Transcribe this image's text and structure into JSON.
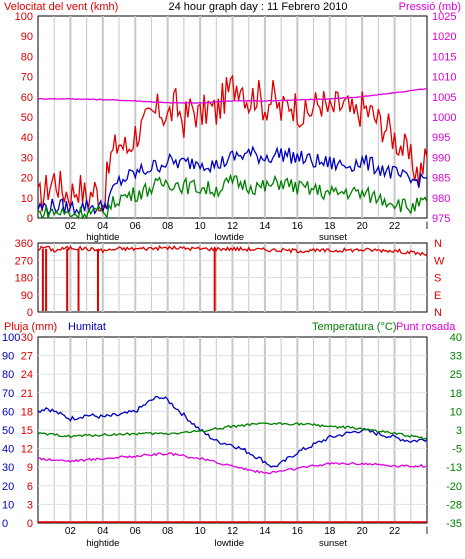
{
  "header": {
    "wind_title": "Velocitat del vent (kmh)",
    "graph_title": "24 hour graph day : 11 Febrero 2010",
    "pressure_title": "Pressió (mb)",
    "rain_title": "Pluja (mm)",
    "humidity_title": "Humitat",
    "temp_title": "Temperatura (°C)",
    "dew_title": "Punt rosada"
  },
  "colors": {
    "wind": "#e00000",
    "pressure": "#e000e0",
    "avg_wind": "#0000c0",
    "low_wind": "#008000",
    "humidity": "#0000c0",
    "temperature": "#008000",
    "dewpoint": "#e000e0",
    "rain": "#e00000",
    "grid_v": "#c8c8c8",
    "grid_h": "#e0e0e0"
  },
  "chart_data": [
    {
      "type": "line",
      "x_ticks": [
        "02",
        "04",
        "06",
        "08",
        "10",
        "12",
        "14",
        "16",
        "18",
        "20",
        "22",
        "l"
      ],
      "x_annotations": [
        {
          "x": 4.0,
          "label": "hightide"
        },
        {
          "x": 11.8,
          "label": "lowtide"
        },
        {
          "x": 18.2,
          "label": "sunset"
        }
      ],
      "xlim": [
        0,
        24
      ],
      "y_left_ticks": [
        "0",
        "10",
        "20",
        "30",
        "40",
        "50",
        "60",
        "70",
        "80",
        "90",
        "100"
      ],
      "ylim_left": [
        0,
        100
      ],
      "y_right_ticks": [
        "975",
        "980",
        "985",
        "990",
        "995",
        "1000",
        "1005",
        "1010",
        "1015",
        "1020",
        "1025"
      ],
      "ylim_right": [
        975,
        1025
      ],
      "series": [
        {
          "axis": "left",
          "color_key": "wind",
          "points": [
            [
              0,
              8
            ],
            [
              0.5,
              14
            ],
            [
              1,
              20
            ],
            [
              1.5,
              14
            ],
            [
              2,
              12
            ],
            [
              2.5,
              16
            ],
            [
              3,
              10
            ],
            [
              3.5,
              14
            ],
            [
              4,
              8
            ],
            [
              4.5,
              30
            ],
            [
              5,
              38
            ],
            [
              5.5,
              34
            ],
            [
              6,
              42
            ],
            [
              6.5,
              45
            ],
            [
              7,
              50
            ],
            [
              7.5,
              54
            ],
            [
              8,
              50
            ],
            [
              8.5,
              56
            ],
            [
              9,
              48
            ],
            [
              9.5,
              55
            ],
            [
              10,
              50
            ],
            [
              10.5,
              55
            ],
            [
              11,
              52
            ],
            [
              11.5,
              60
            ],
            [
              12,
              65
            ],
            [
              12.5,
              68
            ],
            [
              13,
              58
            ],
            [
              13.5,
              62
            ],
            [
              14,
              55
            ],
            [
              14.5,
              60
            ],
            [
              15,
              52
            ],
            [
              15.5,
              58
            ],
            [
              16,
              55
            ],
            [
              16.5,
              50
            ],
            [
              17,
              55
            ],
            [
              17.5,
              58
            ],
            [
              18,
              52
            ],
            [
              18.5,
              56
            ],
            [
              19,
              55
            ],
            [
              19.5,
              50
            ],
            [
              20,
              55
            ],
            [
              20.5,
              52
            ],
            [
              21,
              48
            ],
            [
              21.5,
              45
            ],
            [
              22,
              40
            ],
            [
              22.5,
              35
            ],
            [
              23,
              28
            ],
            [
              23.5,
              22
            ],
            [
              24,
              30
            ]
          ]
        },
        {
          "axis": "right",
          "color_key": "pressure",
          "points": [
            [
              0,
              1004.5
            ],
            [
              2,
              1004.5
            ],
            [
              4,
              1004.3
            ],
            [
              6,
              1004
            ],
            [
              8,
              1003.5
            ],
            [
              10,
              1003.5
            ],
            [
              12,
              1004
            ],
            [
              14,
              1004
            ],
            [
              16,
              1004.2
            ],
            [
              18,
              1004.5
            ],
            [
              20,
              1005
            ],
            [
              22,
              1006
            ],
            [
              24,
              1007
            ]
          ]
        },
        {
          "axis": "left",
          "color_key": "avg_wind",
          "points": [
            [
              0,
              5
            ],
            [
              1,
              6
            ],
            [
              2,
              5
            ],
            [
              3,
              6
            ],
            [
              4,
              5
            ],
            [
              5,
              18
            ],
            [
              6,
              22
            ],
            [
              7,
              25
            ],
            [
              8,
              28
            ],
            [
              9,
              27
            ],
            [
              10,
              28
            ],
            [
              11,
              26
            ],
            [
              12,
              30
            ],
            [
              13,
              32
            ],
            [
              14,
              30
            ],
            [
              15,
              32
            ],
            [
              16,
              30
            ],
            [
              17,
              28
            ],
            [
              18,
              27
            ],
            [
              19,
              26
            ],
            [
              20,
              28
            ],
            [
              21,
              25
            ],
            [
              22,
              22
            ],
            [
              23,
              18
            ],
            [
              24,
              20
            ]
          ]
        },
        {
          "axis": "left",
          "color_key": "low_wind",
          "points": [
            [
              0,
              2
            ],
            [
              1,
              3
            ],
            [
              2,
              2
            ],
            [
              3,
              3
            ],
            [
              4,
              2
            ],
            [
              5,
              10
            ],
            [
              6,
              12
            ],
            [
              7,
              15
            ],
            [
              8,
              18
            ],
            [
              9,
              16
            ],
            [
              10,
              15
            ],
            [
              11,
              14
            ],
            [
              12,
              18
            ],
            [
              13,
              16
            ],
            [
              14,
              15
            ],
            [
              15,
              18
            ],
            [
              16,
              15
            ],
            [
              17,
              14
            ],
            [
              18,
              12
            ],
            [
              19,
              13
            ],
            [
              20,
              12
            ],
            [
              21,
              10
            ],
            [
              22,
              8
            ],
            [
              23,
              5
            ],
            [
              24,
              8
            ]
          ]
        }
      ]
    },
    {
      "type": "line",
      "x_ticks": [
        "02",
        "04",
        "06",
        "08",
        "10",
        "12",
        "14",
        "16",
        "18",
        "20",
        "22",
        "l"
      ],
      "xlim": [
        0,
        24
      ],
      "y_left_ticks": [
        "0",
        "90",
        "180",
        "270",
        "360"
      ],
      "ylim_left": [
        0,
        360
      ],
      "y_right_ticks": [
        "N",
        "E",
        "S",
        "W",
        "N"
      ],
      "series": [
        {
          "axis": "left",
          "color_key": "wind",
          "points": [
            [
              0,
              330
            ],
            [
              0.5,
              340
            ],
            [
              1,
              320
            ],
            [
              1.5,
              330
            ],
            [
              2,
              335
            ],
            [
              3,
              330
            ],
            [
              4,
              320
            ],
            [
              5,
              330
            ],
            [
              6,
              330
            ],
            [
              8,
              335
            ],
            [
              10,
              330
            ],
            [
              12,
              330
            ],
            [
              14,
              325
            ],
            [
              16,
              320
            ],
            [
              18,
              320
            ],
            [
              20,
              325
            ],
            [
              22,
              320
            ],
            [
              24,
              300
            ]
          ],
          "drops": [
            0.3,
            0.5,
            1.8,
            2.5,
            3.7,
            10.9
          ]
        }
      ]
    },
    {
      "type": "line",
      "x_ticks": [
        "02",
        "04",
        "06",
        "08",
        "10",
        "12",
        "14",
        "16",
        "18",
        "20",
        "22",
        "l"
      ],
      "x_annotations": [
        {
          "x": 4.0,
          "label": "hightide"
        },
        {
          "x": 11.8,
          "label": "lowtide"
        },
        {
          "x": 18.2,
          "label": "sunset"
        }
      ],
      "xlim": [
        0,
        24
      ],
      "y_rain_ticks": [
        "0",
        "3",
        "6",
        "9",
        "12",
        "15",
        "18",
        "21",
        "24",
        "27",
        "30"
      ],
      "y_hum_ticks": [
        "0",
        "10",
        "20",
        "30",
        "40",
        "50",
        "60",
        "70",
        "80",
        "90",
        "100"
      ],
      "ylim_left": [
        0,
        100
      ],
      "y_right_ticks": [
        "-35",
        "-28",
        "-20",
        "-13",
        "-5",
        "3",
        "10",
        "18",
        "25",
        "33",
        "40"
      ],
      "ylim_right": [
        -35,
        40
      ],
      "series": [
        {
          "axis": "left",
          "color_key": "humidity",
          "points": [
            [
              0,
              60
            ],
            [
              0.5,
              62
            ],
            [
              1,
              60
            ],
            [
              1.5,
              58
            ],
            [
              2,
              56
            ],
            [
              3,
              58
            ],
            [
              4,
              57
            ],
            [
              5,
              58
            ],
            [
              6,
              60
            ],
            [
              7,
              66
            ],
            [
              7.5,
              68
            ],
            [
              8,
              66
            ],
            [
              9,
              58
            ],
            [
              10,
              50
            ],
            [
              11,
              44
            ],
            [
              12,
              42
            ],
            [
              13,
              38
            ],
            [
              14,
              33
            ],
            [
              14.5,
              30
            ],
            [
              15,
              32
            ],
            [
              16,
              38
            ],
            [
              17,
              42
            ],
            [
              18,
              46
            ],
            [
              19,
              48
            ],
            [
              20,
              50
            ],
            [
              21,
              48
            ],
            [
              22,
              46
            ],
            [
              23,
              44
            ],
            [
              24,
              45
            ]
          ]
        },
        {
          "axis": "right",
          "color_key": "temperature",
          "points": [
            [
              0,
              1
            ],
            [
              2,
              0
            ],
            [
              4,
              0.5
            ],
            [
              6,
              1
            ],
            [
              8,
              1
            ],
            [
              10,
              2
            ],
            [
              12,
              4
            ],
            [
              14,
              5
            ],
            [
              16,
              5
            ],
            [
              18,
              4
            ],
            [
              20,
              3
            ],
            [
              22,
              1
            ],
            [
              24,
              -1
            ]
          ]
        },
        {
          "axis": "right",
          "color_key": "dewpoint",
          "points": [
            [
              0,
              -9
            ],
            [
              2,
              -10
            ],
            [
              4,
              -9
            ],
            [
              6,
              -8
            ],
            [
              8,
              -7
            ],
            [
              10,
              -9
            ],
            [
              12,
              -12
            ],
            [
              14,
              -15
            ],
            [
              16,
              -13
            ],
            [
              18,
              -11
            ],
            [
              20,
              -11
            ],
            [
              22,
              -12
            ],
            [
              24,
              -12
            ]
          ]
        },
        {
          "axis": "left",
          "color_key": "rain",
          "points": [
            [
              0,
              0.5
            ],
            [
              24,
              0.5
            ]
          ]
        }
      ]
    }
  ]
}
